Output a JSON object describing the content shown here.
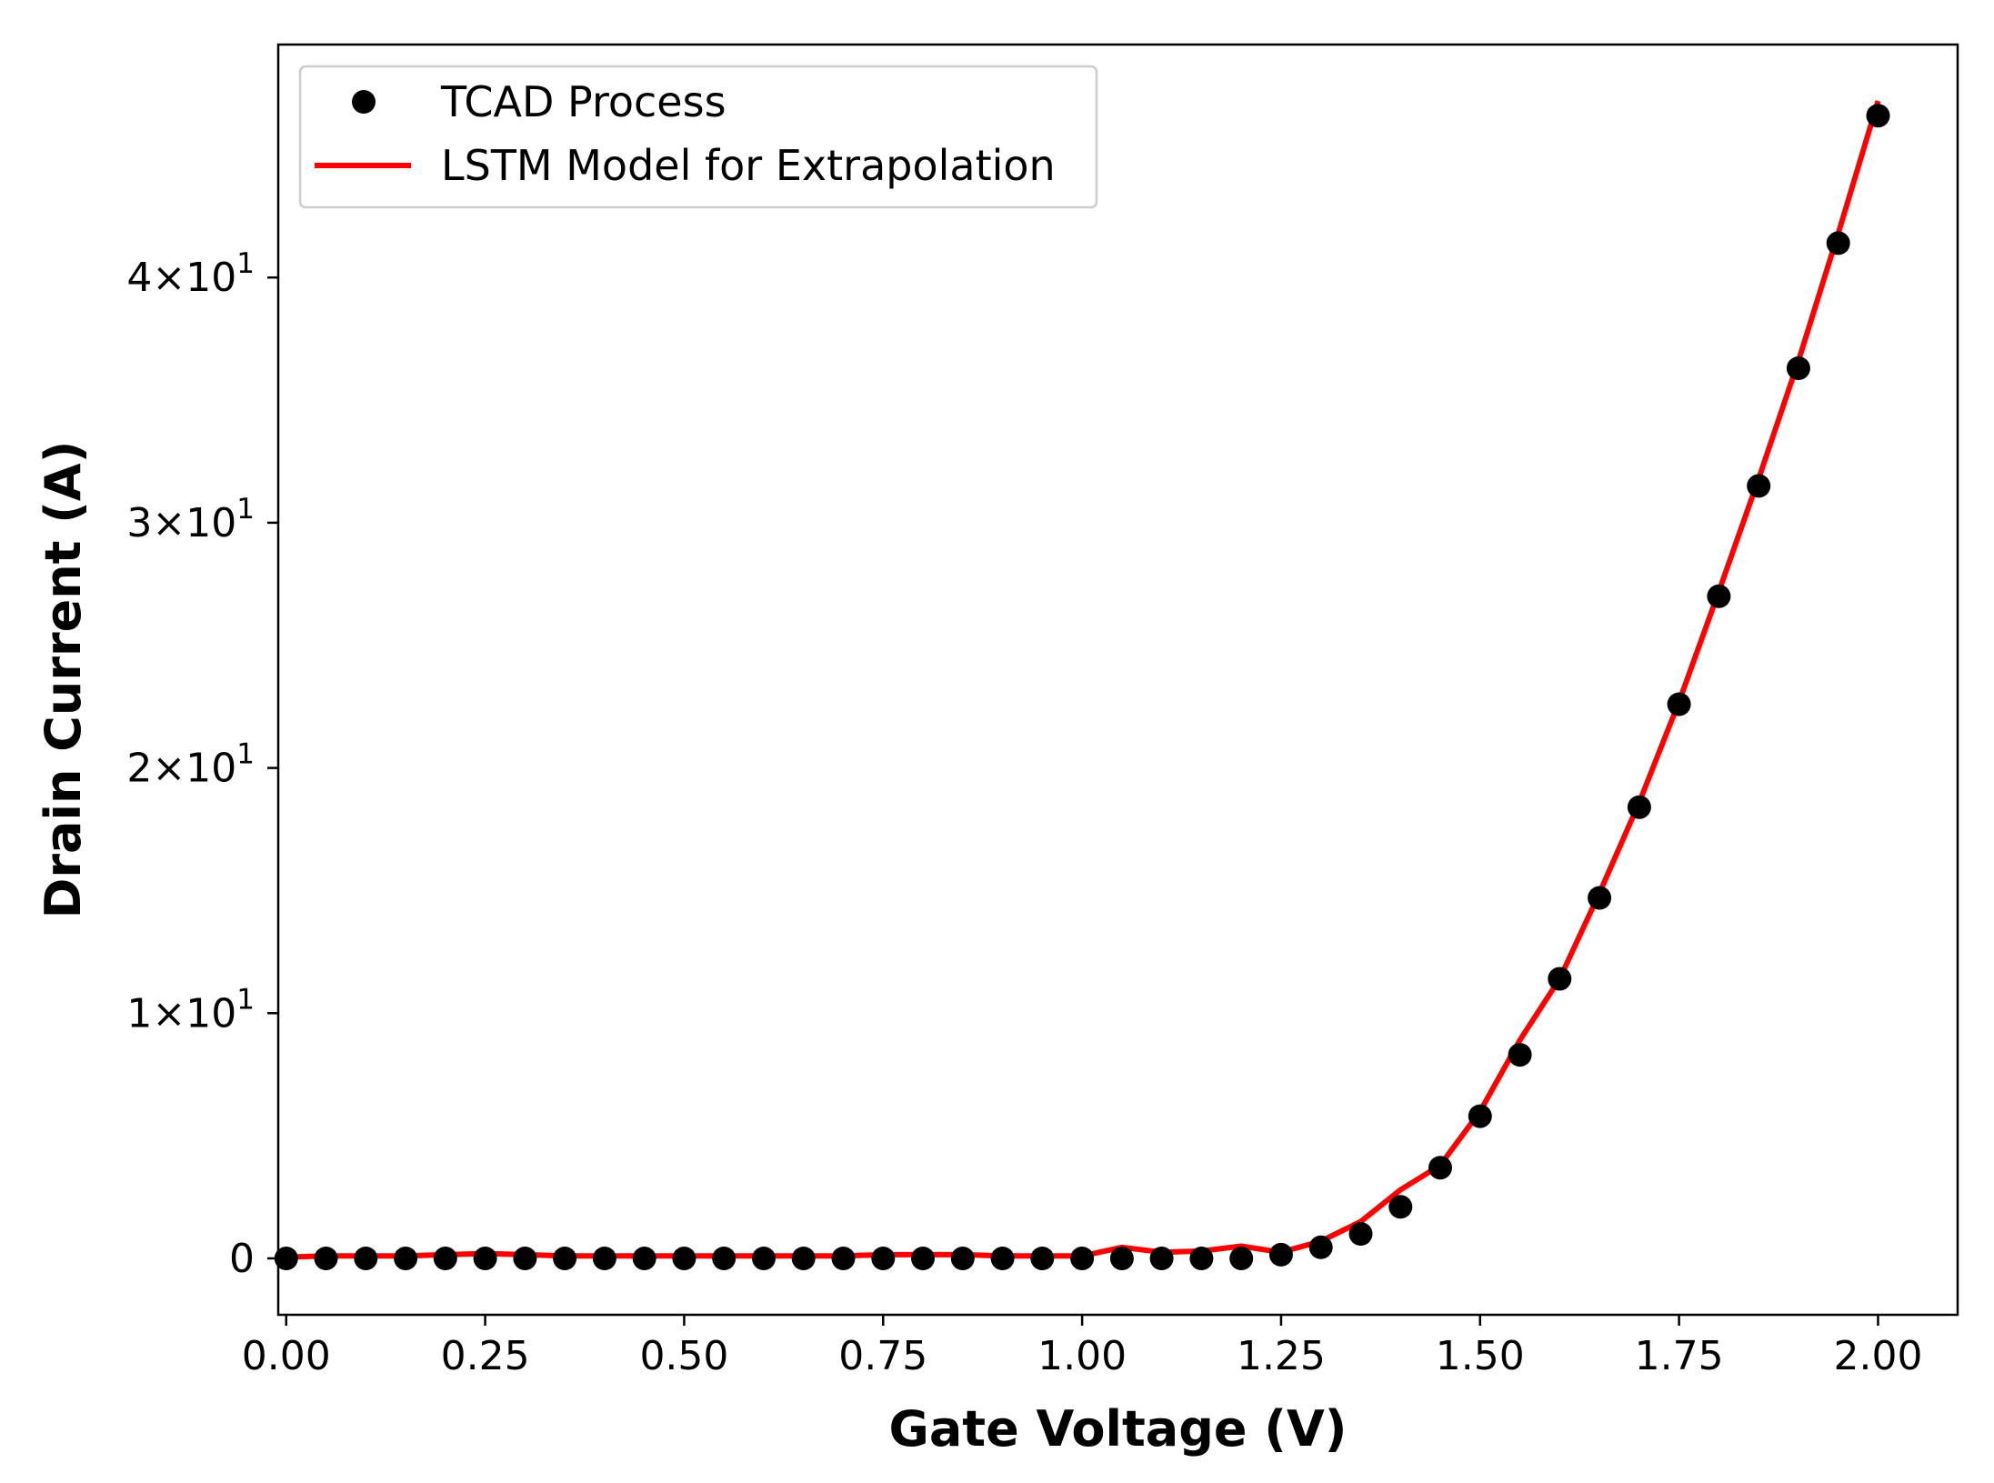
{
  "chart_data": {
    "type": "line",
    "xlabel": "Gate Voltage (V)",
    "ylabel": "Drain Current (A)",
    "xlim": [
      -0.01,
      2.1
    ],
    "ylim": [
      -2.3,
      49.5
    ],
    "xticks": [
      0.0,
      0.25,
      0.5,
      0.75,
      1.0,
      1.25,
      1.5,
      1.75,
      2.0
    ],
    "xtick_labels": [
      "0.00",
      "0.25",
      "0.50",
      "0.75",
      "1.00",
      "1.25",
      "1.50",
      "1.75",
      "2.00"
    ],
    "yticks": [
      0,
      10,
      20,
      30,
      40
    ],
    "ytick_labels": [
      "0",
      "1×10",
      "2×10",
      "3×10",
      "4×10"
    ],
    "ytick_exponents": [
      "",
      "1",
      "1",
      "1",
      "1"
    ],
    "grid": false,
    "legend_position": "top-left",
    "series": [
      {
        "name": "TCAD Process",
        "kind": "scatter",
        "color": "#000000",
        "x": [
          0.0,
          0.05,
          0.1,
          0.15,
          0.2,
          0.25,
          0.3,
          0.35,
          0.4,
          0.45,
          0.5,
          0.55,
          0.6,
          0.65,
          0.7,
          0.75,
          0.8,
          0.85,
          0.9,
          0.95,
          1.0,
          1.05,
          1.1,
          1.15,
          1.2,
          1.25,
          1.3,
          1.35,
          1.4,
          1.45,
          1.5,
          1.55,
          1.6,
          1.65,
          1.7,
          1.75,
          1.8,
          1.85,
          1.9,
          1.95,
          2.0
        ],
        "y": [
          0.0,
          0.0,
          0.0,
          0.0,
          0.0,
          0.0,
          0.0,
          0.0,
          0.0,
          0.0,
          0.0,
          0.0,
          0.0,
          0.0,
          0.0,
          0.0,
          0.0,
          0.0,
          0.0,
          0.0,
          0.0,
          0.0,
          0.0,
          0.0,
          0.0,
          0.15,
          0.45,
          1.0,
          2.1,
          3.7,
          5.8,
          8.3,
          11.4,
          14.7,
          18.4,
          22.6,
          27.0,
          31.5,
          36.3,
          41.4,
          46.6
        ]
      },
      {
        "name": "LSTM Model for Extrapolation",
        "kind": "line",
        "color": "#ff0000",
        "x": [
          0.0,
          0.05,
          0.1,
          0.15,
          0.2,
          0.25,
          0.3,
          0.35,
          0.4,
          0.45,
          0.5,
          0.55,
          0.6,
          0.65,
          0.7,
          0.75,
          0.8,
          0.85,
          0.9,
          0.95,
          1.0,
          1.05,
          1.1,
          1.15,
          1.2,
          1.25,
          1.3,
          1.35,
          1.4,
          1.45,
          1.5,
          1.55,
          1.6,
          1.65,
          1.7,
          1.75,
          1.8,
          1.85,
          1.9,
          1.95,
          2.0
        ],
        "y": [
          0.05,
          0.1,
          0.1,
          0.1,
          0.15,
          0.2,
          0.15,
          0.1,
          0.1,
          0.1,
          0.1,
          0.1,
          0.1,
          0.1,
          0.1,
          0.15,
          0.15,
          0.15,
          0.1,
          0.1,
          0.1,
          0.45,
          0.25,
          0.3,
          0.5,
          0.25,
          0.7,
          1.5,
          2.8,
          3.8,
          6.0,
          8.9,
          11.4,
          14.9,
          18.6,
          22.7,
          27.2,
          31.8,
          36.6,
          41.8,
          47.2
        ]
      }
    ]
  }
}
